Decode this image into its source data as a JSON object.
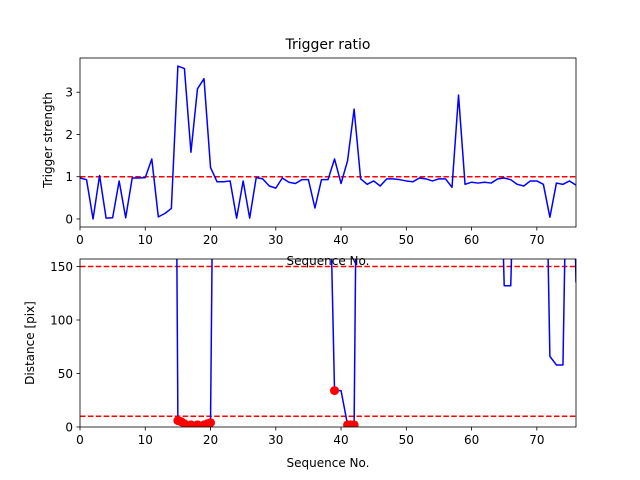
{
  "chart_data": [
    {
      "type": "line",
      "title": "Trigger ratio",
      "xlabel": "Sequence No.",
      "ylabel": "Trigger strength",
      "xlim": [
        0,
        76
      ],
      "ylim": [
        -0.19,
        3.81
      ],
      "xticks": [
        0,
        10,
        20,
        30,
        40,
        50,
        60,
        70
      ],
      "yticks": [
        0,
        1,
        2,
        3
      ],
      "grid": false,
      "series": [
        {
          "color": "#0000ff",
          "x": [
            0,
            1,
            2,
            3,
            4,
            5,
            6,
            7,
            8,
            9,
            10,
            11,
            12,
            13,
            14,
            15,
            16,
            17,
            18,
            19,
            20,
            21,
            22,
            23,
            24,
            25,
            26,
            27,
            28,
            29,
            30,
            31,
            32,
            33,
            34,
            35,
            36,
            37,
            38,
            39,
            40,
            41,
            42,
            43,
            44,
            45,
            46,
            47,
            48,
            49,
            50,
            51,
            52,
            53,
            54,
            55,
            56,
            57,
            58,
            59,
            60,
            61,
            62,
            63,
            64,
            65,
            66,
            67,
            68,
            69,
            70,
            71,
            72,
            73,
            74,
            75,
            76
          ],
          "y": [
            0.97,
            0.93,
            0.0,
            1.03,
            0.02,
            0.03,
            0.9,
            0.03,
            0.97,
            0.97,
            0.98,
            1.42,
            0.05,
            0.13,
            0.25,
            3.62,
            3.56,
            1.58,
            3.08,
            3.32,
            1.22,
            0.88,
            0.88,
            0.9,
            0.02,
            0.9,
            0.02,
            0.98,
            0.95,
            0.78,
            0.73,
            0.97,
            0.87,
            0.84,
            0.93,
            0.93,
            0.26,
            0.93,
            0.93,
            1.42,
            0.84,
            1.38,
            2.6,
            0.95,
            0.82,
            0.9,
            0.78,
            0.95,
            0.95,
            0.93,
            0.9,
            0.88,
            0.97,
            0.95,
            0.9,
            0.95,
            0.95,
            0.75,
            2.93,
            0.82,
            0.87,
            0.85,
            0.87,
            0.85,
            0.95,
            0.97,
            0.93,
            0.82,
            0.78,
            0.9,
            0.9,
            0.82,
            0.04,
            0.85,
            0.82,
            0.9,
            0.8
          ]
        }
      ],
      "hlines": [
        {
          "y": 1.0,
          "color": "#ff0000",
          "style": "dashed"
        }
      ]
    },
    {
      "type": "line",
      "title": "",
      "xlabel": "Sequence No.",
      "ylabel": "Distance [pix]",
      "xlim": [
        0,
        76
      ],
      "ylim": [
        0,
        157
      ],
      "xticks": [
        0,
        10,
        20,
        30,
        40,
        50,
        60,
        70
      ],
      "yticks": [
        0,
        50,
        100,
        150
      ],
      "grid": false,
      "series": [
        {
          "color": "#0000ff",
          "x": [
            14.8,
            15,
            16,
            17,
            18,
            19,
            20,
            20.3,
            null,
            38.4,
            39,
            40,
            41,
            41.5,
            42,
            42.3,
            null,
            64.7,
            65,
            66,
            66.3,
            null,
            71.6,
            72,
            73,
            74,
            74.4,
            null,
            75.8,
            76
          ],
          "y": [
            200,
            6,
            3,
            2,
            2,
            2,
            4,
            200,
            null,
            200,
            34,
            34,
            2,
            2,
            2,
            200,
            null,
            200,
            132,
            132,
            200,
            null,
            200,
            66,
            58,
            58,
            200,
            null,
            200,
            135
          ]
        },
        {
          "type": "scatter",
          "color": "#ff0000",
          "x": [
            15,
            15.5,
            16,
            17,
            18,
            19,
            19.5,
            20,
            39,
            41,
            41.5,
            42
          ],
          "y": [
            6,
            5,
            3,
            2,
            2,
            2,
            3,
            4,
            34,
            2,
            2,
            2
          ]
        }
      ],
      "hlines": [
        {
          "y": 150,
          "color": "#ff0000",
          "style": "dashed"
        },
        {
          "y": 10,
          "color": "#ff0000",
          "style": "dashed"
        }
      ]
    }
  ]
}
